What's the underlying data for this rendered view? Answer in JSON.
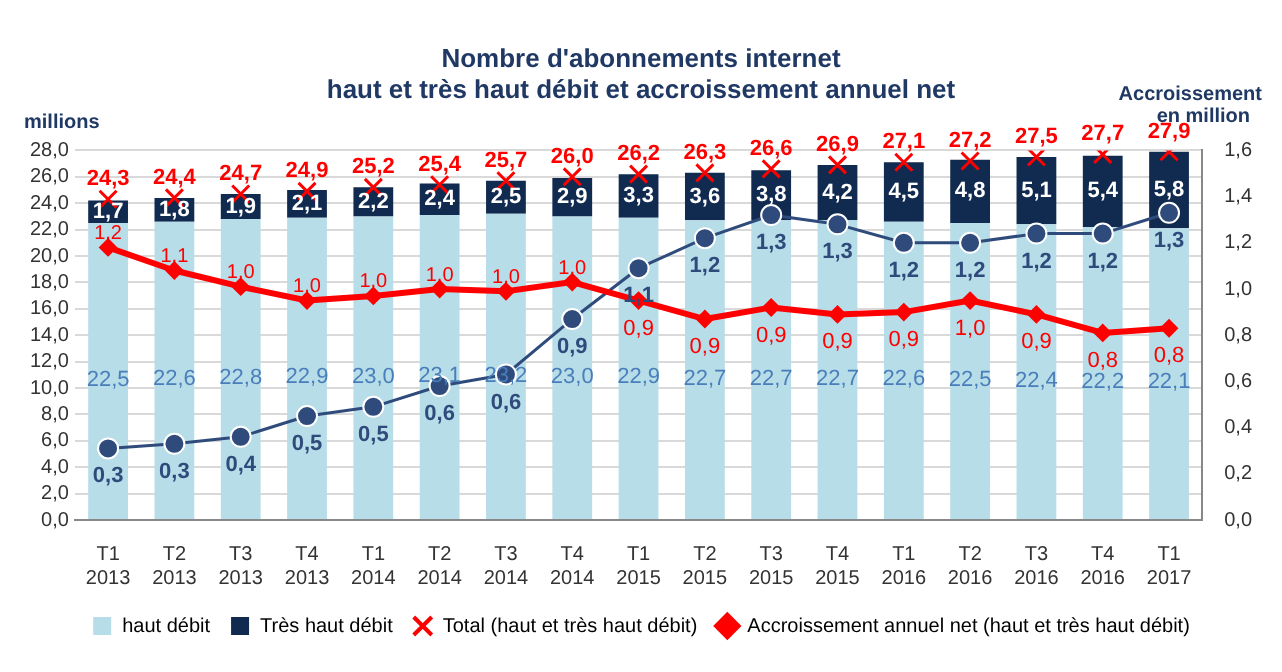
{
  "chart_data": {
    "type": "bar",
    "title": "Nombre d'abonnements internet",
    "subtitle": "haut et très haut débit et accroissement annuel net",
    "ylabel": "millions",
    "y2label": "Accroissement en million",
    "categories": [
      "T1 2013",
      "T2 2013",
      "T3 2013",
      "T4 2013",
      "T1 2014",
      "T2 2014",
      "T3 2014",
      "T4 2014",
      "T1 2015",
      "T2 2015",
      "T3 2015",
      "T4 2015",
      "T1 2016",
      "T2 2016",
      "T3 2016",
      "T4 2016",
      "T1 2017"
    ],
    "stacked": true,
    "grid": "y",
    "legend": "bottom",
    "ylim": [
      0,
      28
    ],
    "yticks": [
      {
        "value": 0,
        "label": "0,0"
      },
      {
        "value": 2,
        "label": "2,0"
      },
      {
        "value": 4,
        "label": "4,0"
      },
      {
        "value": 6,
        "label": "6,0"
      },
      {
        "value": 8,
        "label": "8,0"
      },
      {
        "value": 10,
        "label": "10,0"
      },
      {
        "value": 12,
        "label": "12,0"
      },
      {
        "value": 14,
        "label": "14,0"
      },
      {
        "value": 16,
        "label": "16,0"
      },
      {
        "value": 18,
        "label": "18,0"
      },
      {
        "value": 20,
        "label": "20,0"
      },
      {
        "value": 22,
        "label": "22,0"
      },
      {
        "value": 24,
        "label": "24,0"
      },
      {
        "value": 26,
        "label": "26,0"
      },
      {
        "value": 28,
        "label": "28,0"
      }
    ],
    "y2lim": [
      0,
      1.6
    ],
    "y2ticks": [
      {
        "value": 0,
        "label": "0,0"
      },
      {
        "value": 0.2,
        "label": "0,2"
      },
      {
        "value": 0.4,
        "label": "0,4"
      },
      {
        "value": 0.6,
        "label": "0,6"
      },
      {
        "value": 0.8,
        "label": "0,8"
      },
      {
        "value": 1,
        "label": "1,0"
      },
      {
        "value": 1.2,
        "label": "1,2"
      },
      {
        "value": 1.4,
        "label": "1,4"
      },
      {
        "value": 1.6,
        "label": "1,6"
      }
    ],
    "series": [
      {
        "name": "haut débit",
        "color": "#b7dde8",
        "values": [
          22.5,
          22.6,
          22.8,
          22.9,
          23.0,
          23.1,
          23.2,
          23.0,
          22.9,
          22.7,
          22.7,
          22.7,
          22.6,
          22.5,
          22.4,
          22.2,
          22.1
        ],
        "value_labels": [
          "22,5",
          "22,6",
          "22,8",
          "22,9",
          "23,0",
          "23,1",
          "23,2",
          "23,0",
          "22,9",
          "22,7",
          "22,7",
          "22,7",
          "22,6",
          "22,5",
          "22,4",
          "22,2",
          "22,1"
        ]
      },
      {
        "name": "Très haut débit",
        "color": "#112a4f",
        "values": [
          1.7,
          1.8,
          1.9,
          2.1,
          2.2,
          2.4,
          2.5,
          2.9,
          3.3,
          3.6,
          3.8,
          4.2,
          4.5,
          4.8,
          5.1,
          5.4,
          5.8
        ],
        "value_labels": [
          "1,7",
          "1,8",
          "1,9",
          "2,1",
          "2,2",
          "2,4",
          "2,5",
          "2,9",
          "3,3",
          "3,6",
          "3,8",
          "4,2",
          "4,5",
          "4,8",
          "5,1",
          "5,4",
          "5,8"
        ]
      },
      {
        "name": "Total (haut et très haut débit)",
        "type": "scatter",
        "marker": "cross",
        "color": "#ff0000",
        "x": [
          "T1 2013",
          "T2 2013",
          "T3 2013",
          "T4 2013",
          "T1 2014",
          "T2 2014",
          "T3 2014",
          "T4 2014",
          "T1 2015",
          "T2 2015",
          "T3 2015",
          "T4 2015",
          "T1 2016",
          "T2 2016",
          "T3 2016",
          "T4 2016",
          "T1 2017"
        ],
        "values": [
          24.3,
          24.4,
          24.7,
          24.9,
          25.2,
          25.4,
          25.7,
          26.0,
          26.2,
          26.3,
          26.6,
          26.9,
          27.1,
          27.2,
          27.5,
          27.7,
          27.9
        ],
        "value_labels": [
          "24,3",
          "24,4",
          "24,7",
          "24,9",
          "25,2",
          "25,4",
          "25,7",
          "26,0",
          "26,2",
          "26,3",
          "26,6",
          "26,9",
          "27,1",
          "27,2",
          "27,5",
          "27,7",
          "27,9"
        ]
      },
      {
        "name": "Accroissement annuel net (haut et très haut débit)",
        "type": "line",
        "axis": "y2",
        "marker": "diamond",
        "color": "#ff0000",
        "values": [
          1.18,
          1.08,
          1.01,
          0.95,
          0.97,
          1.0,
          0.99,
          1.03,
          0.95,
          0.87,
          0.92,
          0.89,
          0.9,
          0.95,
          0.89,
          0.81,
          0.83
        ],
        "value_labels": [
          "1,2",
          "1,1",
          "1,0",
          "1,0",
          "1,0",
          "1,0",
          "1,0",
          "1,0",
          "0,9",
          "0,9",
          "0,9",
          "0,9",
          "0,9",
          "1,0",
          "0,9",
          "0,8",
          "0,8"
        ]
      },
      {
        "type": "line",
        "axis": "y2",
        "marker": "circle",
        "color": "#2f4b7c",
        "values": [
          0.31,
          0.33,
          0.36,
          0.45,
          0.49,
          0.58,
          0.63,
          0.87,
          1.09,
          1.22,
          1.32,
          1.28,
          1.2,
          1.2,
          1.24,
          1.24,
          1.33
        ],
        "value_labels": [
          "0,3",
          "0,3",
          "0,4",
          "0,5",
          "0,5",
          "0,6",
          "0,6",
          "0,9",
          "1,1",
          "1,2",
          "1,3",
          "1,3",
          "1,2",
          "1,2",
          "1,2",
          "1,2",
          "1,3"
        ]
      }
    ]
  }
}
